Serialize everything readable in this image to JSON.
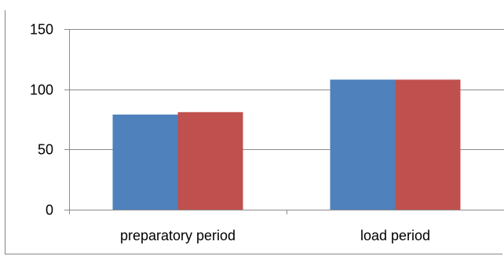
{
  "header_fragment": "",
  "chart_data": {
    "type": "bar",
    "categories": [
      "preparatory period",
      "load period"
    ],
    "series": [
      {
        "values": [
          79,
          108
        ],
        "color": "#4f81bd"
      },
      {
        "values": [
          81,
          108
        ],
        "color": "#c0504d"
      }
    ],
    "ylim": [
      0,
      150
    ],
    "yticks": [
      0,
      50,
      100,
      150
    ],
    "grid": true,
    "legend": "none"
  }
}
